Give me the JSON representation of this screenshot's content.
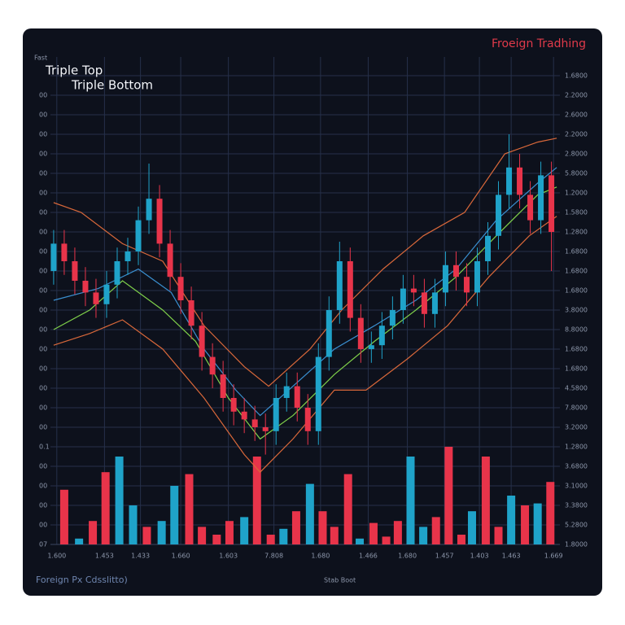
{
  "chart_data": {
    "type": "candlestick",
    "title": "Froeign Tradhing",
    "annotations": [
      "Triple Top",
      "Triple Bottom"
    ],
    "y2label": "Fast",
    "xlabel": "Foreign Px Cdsslitto)",
    "footer": "Stab Boot",
    "grid": true,
    "up_color": "#1fa3c9",
    "down_color": "#e8344a",
    "xlim": [
      -0.3,
      47.8
    ],
    "xticks": [
      {
        "value": 0.3,
        "label": "1.600"
      },
      {
        "value": 4.8,
        "label": "1.453"
      },
      {
        "value": 8.2,
        "label": "1.433"
      },
      {
        "value": 12.0,
        "label": "1.660"
      },
      {
        "value": 16.5,
        "label": "1.603"
      },
      {
        "value": 20.8,
        "label": "7.808"
      },
      {
        "value": 25.2,
        "label": "1.680"
      },
      {
        "value": 29.7,
        "label": "1.466"
      },
      {
        "value": 33.4,
        "label": "1.680"
      },
      {
        "value": 36.9,
        "label": "1.457"
      },
      {
        "value": 40.2,
        "label": "1.403"
      },
      {
        "value": 43.2,
        "label": "1.463"
      },
      {
        "value": 47.2,
        "label": "1.669"
      }
    ],
    "ylim": [
      0,
      24
    ],
    "yticks": [
      {
        "value": 0,
        "label": "1.8000"
      },
      {
        "value": 1,
        "label": "5.2800"
      },
      {
        "value": 2,
        "label": "3.3800"
      },
      {
        "value": 3,
        "label": "3.1000"
      },
      {
        "value": 4,
        "label": "3.6800"
      },
      {
        "value": 5,
        "label": "1.2800"
      },
      {
        "value": 6,
        "label": "3.2000"
      },
      {
        "value": 7,
        "label": "7.8000"
      },
      {
        "value": 8,
        "label": "4.5800"
      },
      {
        "value": 9,
        "label": "1.6800"
      },
      {
        "value": 10,
        "label": "1.6800"
      },
      {
        "value": 11,
        "label": "8.8000"
      },
      {
        "value": 12,
        "label": "3.8000"
      },
      {
        "value": 13,
        "label": "1.6800"
      },
      {
        "value": 14,
        "label": "1.6800"
      },
      {
        "value": 15,
        "label": "1.6800"
      },
      {
        "value": 16,
        "label": "1.2800"
      },
      {
        "value": 17,
        "label": "1.5800"
      },
      {
        "value": 18,
        "label": "1.2000"
      },
      {
        "value": 19,
        "label": "5.8000"
      },
      {
        "value": 20,
        "label": "2.8000"
      },
      {
        "value": 21,
        "label": "2.2000"
      },
      {
        "value": 22,
        "label": "2.6000"
      },
      {
        "value": 23,
        "label": "2.2000"
      },
      {
        "value": 24,
        "label": "1.6800"
      }
    ],
    "y2lim": [
      0,
      24
    ],
    "y2ticks": [
      {
        "value": 0,
        "label": "07"
      },
      {
        "value": 1,
        "label": "00"
      },
      {
        "value": 2,
        "label": "00"
      },
      {
        "value": 3,
        "label": "00"
      },
      {
        "value": 4,
        "label": "00"
      },
      {
        "value": 5,
        "label": "0.1"
      },
      {
        "value": 6,
        "label": "00"
      },
      {
        "value": 7,
        "label": "00"
      },
      {
        "value": 8,
        "label": "00"
      },
      {
        "value": 9,
        "label": "00"
      },
      {
        "value": 10,
        "label": "00"
      },
      {
        "value": 11,
        "label": "00"
      },
      {
        "value": 12,
        "label": "00"
      },
      {
        "value": 13,
        "label": "00"
      },
      {
        "value": 14,
        "label": "00"
      },
      {
        "value": 15,
        "label": "00"
      },
      {
        "value": 16,
        "label": "00"
      },
      {
        "value": 17,
        "label": "00"
      },
      {
        "value": 18,
        "label": "00"
      },
      {
        "value": 19,
        "label": "00"
      },
      {
        "value": 20,
        "label": "00"
      },
      {
        "value": 21,
        "label": "00"
      },
      {
        "value": 22,
        "label": "00"
      },
      {
        "value": 23,
        "label": "00"
      }
    ],
    "x": [
      0,
      1,
      2,
      3,
      4,
      5,
      6,
      7,
      8,
      9,
      10,
      11,
      12,
      13,
      14,
      15,
      16,
      17,
      18,
      19,
      20,
      21,
      22,
      23,
      24,
      25,
      26,
      27,
      28,
      29,
      30,
      31,
      32,
      33,
      34,
      35,
      36,
      37,
      38,
      39,
      40,
      41,
      42,
      43,
      44,
      45,
      46,
      47
    ],
    "open": [
      14.0,
      15.4,
      14.5,
      13.5,
      12.9,
      12.3,
      13.3,
      14.5,
      15.0,
      16.6,
      17.7,
      15.4,
      13.7,
      12.5,
      11.2,
      9.6,
      8.7,
      7.5,
      6.8,
      6.4,
      6.0,
      5.8,
      7.5,
      8.1,
      7.0,
      5.8,
      9.6,
      12.0,
      14.5,
      11.6,
      10.0,
      10.2,
      11.2,
      12.0,
      13.1,
      12.9,
      11.8,
      12.9,
      14.3,
      13.7,
      12.9,
      14.5,
      15.8,
      17.9,
      19.3,
      17.9,
      16.6,
      18.9
    ],
    "high": [
      16.1,
      16.1,
      15.2,
      14.2,
      13.6,
      14.0,
      15.2,
      15.7,
      17.3,
      19.5,
      18.4,
      16.1,
      14.4,
      13.2,
      11.9,
      10.3,
      9.4,
      8.2,
      7.5,
      7.1,
      6.7,
      8.2,
      8.8,
      8.8,
      7.7,
      10.3,
      12.7,
      15.5,
      15.2,
      12.3,
      10.9,
      11.9,
      12.7,
      13.8,
      13.8,
      13.6,
      13.6,
      15.0,
      15.0,
      14.4,
      15.2,
      16.5,
      18.6,
      21.0,
      20.0,
      18.6,
      19.6,
      19.6
    ],
    "low": [
      13.3,
      13.8,
      12.8,
      12.2,
      11.6,
      11.6,
      12.6,
      13.8,
      14.3,
      15.9,
      14.7,
      13.0,
      11.8,
      10.5,
      8.9,
      8.0,
      6.8,
      6.1,
      5.7,
      5.3,
      4.6,
      5.1,
      6.8,
      6.3,
      5.1,
      5.1,
      8.9,
      11.3,
      10.9,
      9.3,
      9.3,
      9.5,
      10.5,
      11.3,
      12.2,
      11.1,
      11.1,
      12.2,
      13.0,
      12.2,
      12.2,
      13.8,
      15.1,
      17.2,
      17.2,
      15.9,
      15.9,
      14.0
    ],
    "close": [
      15.4,
      14.5,
      13.5,
      12.9,
      12.3,
      13.3,
      14.5,
      15.0,
      16.6,
      17.7,
      15.4,
      13.7,
      12.5,
      11.2,
      9.6,
      8.7,
      7.5,
      6.8,
      6.4,
      6.0,
      5.8,
      7.5,
      8.1,
      7.0,
      5.8,
      9.6,
      12.0,
      14.5,
      11.6,
      10.0,
      10.2,
      11.2,
      12.0,
      13.1,
      12.9,
      11.8,
      12.9,
      14.3,
      13.7,
      12.9,
      14.5,
      15.8,
      17.9,
      19.3,
      17.9,
      16.6,
      18.9,
      16.0
    ],
    "volume": {
      "x": [
        1.0,
        2.4,
        3.7,
        4.9,
        6.2,
        7.5,
        8.8,
        10.2,
        11.4,
        12.8,
        14.0,
        15.4,
        16.6,
        18.0,
        19.2,
        20.5,
        21.7,
        22.9,
        24.2,
        25.4,
        26.5,
        27.8,
        28.9,
        30.2,
        31.4,
        32.5,
        33.7,
        34.9,
        36.1,
        37.3,
        38.5,
        39.5,
        40.8,
        42.0,
        43.2,
        44.5,
        45.7,
        46.9
      ],
      "values": [
        2.8,
        0.3,
        1.2,
        3.7,
        4.5,
        2.0,
        0.9,
        1.2,
        3.0,
        3.6,
        0.9,
        0.5,
        1.2,
        1.4,
        4.5,
        0.5,
        0.8,
        1.7,
        3.1,
        1.7,
        0.9,
        3.6,
        0.3,
        1.1,
        0.4,
        1.2,
        4.5,
        0.9,
        1.4,
        5.0,
        0.5,
        1.7,
        4.5,
        0.9,
        2.5,
        2.0,
        2.1,
        3.2
      ],
      "colors": [
        "#e8344a",
        "#1fa3c9",
        "#e8344a",
        "#e8344a",
        "#1fa3c9",
        "#1fa3c9",
        "#e8344a",
        "#1fa3c9",
        "#1fa3c9",
        "#e8344a",
        "#e8344a",
        "#e8344a",
        "#e8344a",
        "#1fa3c9",
        "#e8344a",
        "#e8344a",
        "#1fa3c9",
        "#e8344a",
        "#1fa3c9",
        "#e8344a",
        "#e8344a",
        "#e8344a",
        "#1fa3c9",
        "#e8344a",
        "#e8344a",
        "#e8344a",
        "#1fa3c9",
        "#1fa3c9",
        "#e8344a",
        "#e8344a",
        "#e8344a",
        "#1fa3c9",
        "#e8344a",
        "#e8344a",
        "#1fa3c9",
        "#e8344a",
        "#1fa3c9",
        "#e8344a"
      ]
    },
    "lines": [
      {
        "color": "#d9683a",
        "x": [
          0,
          2.6,
          6.5,
          10.3,
          14.2,
          18.0,
          20.3,
          24.2,
          27.2,
          31.1,
          34.9,
          38.8,
          42.6,
          45.7,
          47.5
        ],
        "values": [
          17.5,
          17.0,
          15.4,
          14.5,
          11.2,
          9.1,
          8.1,
          10.0,
          12.0,
          14.1,
          15.8,
          17.0,
          20.0,
          20.6,
          20.8
        ]
      },
      {
        "color": "#d9683a",
        "x": [
          0,
          3.4,
          6.5,
          10.3,
          14.2,
          18.0,
          19.5,
          22.6,
          26.5,
          29.5,
          33.4,
          37.2,
          41.1,
          44.9,
          47.5
        ],
        "values": [
          10.2,
          10.8,
          11.5,
          10.0,
          7.5,
          4.6,
          3.7,
          5.4,
          7.9,
          7.9,
          9.5,
          11.2,
          13.7,
          15.8,
          16.8
        ]
      },
      {
        "color": "#7fd04a",
        "x": [
          0,
          3.4,
          6.5,
          10.3,
          13.4,
          16.5,
          19.5,
          22.6,
          26.5,
          30.3,
          34.2,
          38.0,
          41.8,
          45.7,
          47.5
        ],
        "values": [
          11.0,
          12.0,
          13.5,
          12.0,
          10.4,
          7.5,
          5.4,
          6.6,
          8.7,
          10.4,
          12.0,
          13.7,
          15.8,
          17.9,
          18.3
        ]
      },
      {
        "color": "#3a8fd0",
        "x": [
          0,
          4.2,
          8.0,
          11.1,
          14.2,
          17.2,
          19.5,
          22.6,
          26.5,
          30.3,
          34.2,
          38.0,
          41.8,
          45.7,
          47.5
        ],
        "values": [
          12.5,
          13.1,
          14.1,
          12.9,
          10.0,
          7.9,
          6.6,
          8.1,
          10.0,
          11.2,
          12.5,
          14.1,
          16.6,
          18.5,
          19.3
        ]
      }
    ]
  }
}
